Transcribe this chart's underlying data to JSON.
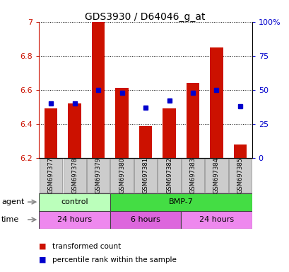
{
  "title": "GDS3930 / D64046_g_at",
  "samples": [
    "GSM697377",
    "GSM697378",
    "GSM697379",
    "GSM697380",
    "GSM697381",
    "GSM697382",
    "GSM697383",
    "GSM697384",
    "GSM697385"
  ],
  "red_values": [
    6.49,
    6.52,
    7.0,
    6.61,
    6.385,
    6.49,
    6.64,
    6.85,
    6.28
  ],
  "blue_percentiles": [
    40,
    40,
    50,
    48,
    37,
    42,
    48,
    50,
    38
  ],
  "ymin": 6.2,
  "ymax": 7.0,
  "y_ticks": [
    6.2,
    6.4,
    6.6,
    6.8,
    7
  ],
  "right_ticks": [
    0,
    25,
    50,
    75,
    100
  ],
  "agent_groups": [
    {
      "label": "control",
      "start": 0,
      "end": 3,
      "color": "#bbffbb"
    },
    {
      "label": "BMP-7",
      "start": 3,
      "end": 9,
      "color": "#44dd44"
    }
  ],
  "time_groups": [
    {
      "label": "24 hours",
      "start": 0,
      "end": 3,
      "color": "#ee88ee"
    },
    {
      "label": "6 hours",
      "start": 3,
      "end": 6,
      "color": "#dd66dd"
    },
    {
      "label": "24 hours",
      "start": 6,
      "end": 9,
      "color": "#ee88ee"
    }
  ],
  "bar_color": "#cc1100",
  "dot_color": "#0000cc",
  "bar_width": 0.55,
  "ylabel_color": "#cc1100",
  "right_axis_color": "#0000cc",
  "grid_color": "#000000",
  "tick_label_bg": "#cccccc",
  "legend_red_label": "transformed count",
  "legend_blue_label": "percentile rank within the sample",
  "agent_label": "agent",
  "time_label": "time"
}
